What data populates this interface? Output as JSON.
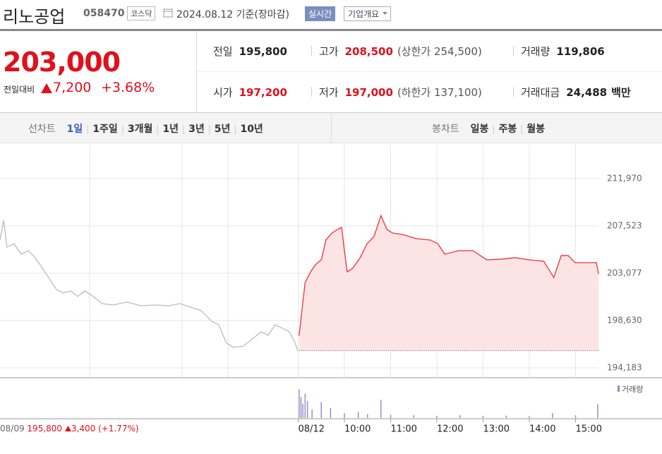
{
  "header": {
    "name": "리노공업",
    "code": "058470",
    "market": "코스닥",
    "date": "2024.08.12 기준(장마감)",
    "realtime": "실시간",
    "company_info": "기업개요"
  },
  "quote": {
    "price": "203,000",
    "change_label": "전일대비",
    "change": "7,200",
    "change_rate": "+3.68%"
  },
  "summary": [
    {
      "label": "전일",
      "value": "195,800"
    },
    {
      "label": "고가",
      "value": "208,500",
      "note": "(상한가 254,500)"
    },
    {
      "label": "거래량",
      "value": "119,806"
    },
    {
      "label": "시가",
      "value": "197,200"
    },
    {
      "label": "저가",
      "value": "197,000",
      "note": "(하한가 137,100)"
    },
    {
      "label": "거래대금",
      "value": "24,488",
      "unit": "백만"
    }
  ],
  "tabs": {
    "line_label": "선차트",
    "line": [
      "1일",
      "1주일",
      "3개월",
      "1년",
      "3년",
      "5년",
      "10년"
    ],
    "selected": 0,
    "candle_label": "봉차트",
    "candle": [
      "일봉",
      "주봉",
      "월봉"
    ]
  },
  "prev_day": {
    "date": "08/09",
    "close": "195,800",
    "change": "3,400",
    "rate": "(+1.77%)"
  },
  "chart_data": {
    "type": "line",
    "xlim": [
      2.55,
      16.87
    ],
    "xticks": [
      {
        "value": 9,
        "label": "08/12"
      },
      {
        "value": 10,
        "label": "10:00"
      },
      {
        "value": 11,
        "label": "11:00"
      },
      {
        "value": 12,
        "label": "12:00"
      },
      {
        "value": 13,
        "label": "13:00"
      },
      {
        "value": 14,
        "label": "14:00"
      },
      {
        "value": 15,
        "label": "15:00"
      }
    ],
    "ylim": [
      193250,
      215160
    ],
    "yticks": [
      {
        "value": 194183,
        "label": "194,183"
      },
      {
        "value": 198630,
        "label": "198,630"
      },
      {
        "value": 203077,
        "label": "203,077"
      },
      {
        "value": 207523,
        "label": "207,523"
      },
      {
        "value": 211970,
        "label": "211,970"
      }
    ],
    "grid": true,
    "reference": 195800,
    "series": [
      {
        "color": "#bbbbbb",
        "x": [
          2.55,
          2.63,
          2.7,
          2.85,
          3.01,
          3.16,
          3.31,
          3.47,
          3.62,
          3.77,
          3.92,
          4.08,
          4.23,
          4.38,
          4.53,
          4.76,
          4.99,
          5.3,
          5.6,
          5.91,
          6.21,
          6.44,
          6.67,
          6.9,
          7.13,
          7.28,
          7.44,
          7.59,
          7.82,
          8.05,
          8.2,
          8.35,
          8.5,
          8.66,
          8.81,
          8.93,
          8.99
        ],
        "values": [
          206200,
          208050,
          205530,
          205860,
          204870,
          205200,
          204540,
          203540,
          202550,
          201550,
          201220,
          201420,
          200890,
          201420,
          201020,
          200220,
          200090,
          200360,
          200020,
          200090,
          200020,
          200220,
          199890,
          199560,
          198560,
          198230,
          196570,
          196110,
          196240,
          197040,
          197570,
          197240,
          198230,
          197900,
          197570,
          196570,
          195800
        ]
      },
      {
        "color": "#f0303a",
        "fill": "#fde4e4",
        "x": [
          9.02,
          9.08,
          9.15,
          9.27,
          9.37,
          9.5,
          9.6,
          9.73,
          9.85,
          9.94,
          10.0,
          10.06,
          10.18,
          10.34,
          10.49,
          10.64,
          10.79,
          10.92,
          11.04,
          11.25,
          11.56,
          11.86,
          12.02,
          12.17,
          12.47,
          12.78,
          13.08,
          13.39,
          13.69,
          14.0,
          14.31,
          14.53,
          14.69,
          14.84,
          14.99,
          15.15,
          15.3,
          15.45,
          15.5
        ],
        "values": [
          197200,
          199560,
          202210,
          203210,
          203870,
          204340,
          206200,
          206860,
          207190,
          207390,
          205200,
          203210,
          203540,
          204540,
          205860,
          206530,
          208500,
          207190,
          206860,
          206730,
          206330,
          206200,
          205860,
          204870,
          205200,
          205200,
          204340,
          204400,
          204540,
          204340,
          204210,
          202680,
          204740,
          204740,
          204070,
          204070,
          204070,
          204070,
          203000
        ]
      }
    ],
    "volume": {
      "name": "거래량",
      "color": "#9b8ec7",
      "y2lim": [
        0,
        6000
      ],
      "x": [
        9.02,
        9.06,
        9.1,
        9.15,
        9.2,
        9.3,
        9.5,
        9.7,
        10.0,
        10.3,
        10.5,
        10.79,
        11.0,
        11.5,
        12.0,
        12.5,
        13.0,
        13.5,
        14.0,
        14.5,
        15.0,
        15.48
      ],
      "values": [
        5200,
        3800,
        2600,
        4400,
        3100,
        1500,
        2900,
        1800,
        900,
        1100,
        700,
        3300,
        600,
        500,
        400,
        500,
        400,
        450,
        350,
        900,
        500,
        2500
      ]
    }
  }
}
